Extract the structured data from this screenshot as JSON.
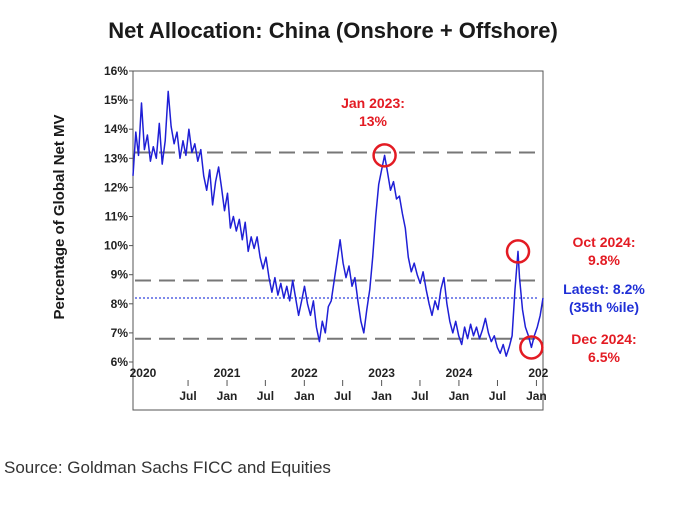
{
  "chart_data": {
    "type": "line",
    "title": "Net Allocation: China (Onshore + Offshore)",
    "ylabel": "Percentage of Global Net MV",
    "ylim": [
      6,
      16
    ],
    "yticks": [
      "6%",
      "7%",
      "8%",
      "9%",
      "10%",
      "11%",
      "12%",
      "13%",
      "14%",
      "15%",
      "16%"
    ],
    "ytick_values": [
      6,
      7,
      8,
      9,
      10,
      11,
      12,
      13,
      14,
      15,
      16
    ],
    "xlim": [
      "2019-10-15",
      "2025-02-01"
    ],
    "year_labels": [
      {
        "label": "2020",
        "x": "2019-12-01"
      },
      {
        "label": "2021",
        "x": "2021-01-01"
      },
      {
        "label": "2022",
        "x": "2022-01-01"
      },
      {
        "label": "2023",
        "x": "2023-01-01"
      },
      {
        "label": "2024",
        "x": "2024-01-01"
      },
      {
        "label": "202",
        "x": "2025-01-10"
      }
    ],
    "month_ticks": [
      {
        "label": "Jul",
        "x": "2020-07-01"
      },
      {
        "label": "Jan",
        "x": "2021-01-01"
      },
      {
        "label": "Jul",
        "x": "2021-07-01"
      },
      {
        "label": "Jan",
        "x": "2022-01-01"
      },
      {
        "label": "Jul",
        "x": "2022-07-01"
      },
      {
        "label": "Jan",
        "x": "2023-01-01"
      },
      {
        "label": "Jul",
        "x": "2023-07-01"
      },
      {
        "label": "Jan",
        "x": "2024-01-01"
      },
      {
        "label": "Jul",
        "x": "2024-07-01"
      },
      {
        "label": "Jan",
        "x": "2025-01-01"
      }
    ],
    "reference_lines": [
      {
        "y": 13.2,
        "style": "dashed",
        "color": "#777777"
      },
      {
        "y": 8.8,
        "style": "dashed",
        "color": "#777777"
      },
      {
        "y": 6.8,
        "style": "dashed",
        "color": "#777777"
      },
      {
        "y": 8.2,
        "style": "dotted",
        "color": "#3344dd"
      }
    ],
    "series": [
      {
        "color": "#1f1fd6",
        "points": [
          [
            "2019-10-15",
            12.4
          ],
          [
            "2019-10-28",
            13.9
          ],
          [
            "2019-11-10",
            13.1
          ],
          [
            "2019-11-24",
            14.9
          ],
          [
            "2019-12-08",
            13.3
          ],
          [
            "2019-12-22",
            13.8
          ],
          [
            "2020-01-05",
            12.9
          ],
          [
            "2020-01-19",
            13.4
          ],
          [
            "2020-02-02",
            13.0
          ],
          [
            "2020-02-16",
            14.2
          ],
          [
            "2020-03-01",
            12.8
          ],
          [
            "2020-03-15",
            13.6
          ],
          [
            "2020-03-29",
            15.3
          ],
          [
            "2020-04-12",
            14.1
          ],
          [
            "2020-04-26",
            13.5
          ],
          [
            "2020-05-10",
            13.9
          ],
          [
            "2020-05-24",
            13.0
          ],
          [
            "2020-06-07",
            13.6
          ],
          [
            "2020-06-21",
            13.1
          ],
          [
            "2020-07-05",
            14.0
          ],
          [
            "2020-07-19",
            13.2
          ],
          [
            "2020-08-02",
            13.5
          ],
          [
            "2020-08-16",
            12.9
          ],
          [
            "2020-08-30",
            13.3
          ],
          [
            "2020-09-13",
            12.4
          ],
          [
            "2020-09-27",
            11.9
          ],
          [
            "2020-10-11",
            12.6
          ],
          [
            "2020-10-25",
            11.4
          ],
          [
            "2020-11-08",
            12.2
          ],
          [
            "2020-11-22",
            12.7
          ],
          [
            "2020-12-06",
            12.0
          ],
          [
            "2020-12-20",
            11.2
          ],
          [
            "2021-01-03",
            11.8
          ],
          [
            "2021-01-17",
            10.6
          ],
          [
            "2021-01-31",
            11.0
          ],
          [
            "2021-02-14",
            10.5
          ],
          [
            "2021-02-28",
            10.9
          ],
          [
            "2021-03-14",
            10.2
          ],
          [
            "2021-03-28",
            10.8
          ],
          [
            "2021-04-11",
            9.8
          ],
          [
            "2021-04-25",
            10.3
          ],
          [
            "2021-05-09",
            9.9
          ],
          [
            "2021-05-23",
            10.3
          ],
          [
            "2021-06-06",
            9.6
          ],
          [
            "2021-06-20",
            9.2
          ],
          [
            "2021-07-04",
            9.6
          ],
          [
            "2021-07-18",
            8.9
          ],
          [
            "2021-08-01",
            8.4
          ],
          [
            "2021-08-15",
            8.9
          ],
          [
            "2021-08-29",
            8.3
          ],
          [
            "2021-09-12",
            8.7
          ],
          [
            "2021-09-26",
            8.2
          ],
          [
            "2021-10-10",
            8.6
          ],
          [
            "2021-10-24",
            8.1
          ],
          [
            "2021-11-07",
            8.8
          ],
          [
            "2021-11-21",
            8.2
          ],
          [
            "2021-12-05",
            7.6
          ],
          [
            "2021-12-19",
            8.1
          ],
          [
            "2022-01-02",
            8.6
          ],
          [
            "2022-01-16",
            8.0
          ],
          [
            "2022-01-30",
            7.6
          ],
          [
            "2022-02-13",
            8.1
          ],
          [
            "2022-02-27",
            7.2
          ],
          [
            "2022-03-13",
            6.7
          ],
          [
            "2022-03-27",
            7.4
          ],
          [
            "2022-04-10",
            7.0
          ],
          [
            "2022-04-24",
            7.9
          ],
          [
            "2022-05-08",
            8.1
          ],
          [
            "2022-05-22",
            8.8
          ],
          [
            "2022-06-05",
            9.5
          ],
          [
            "2022-06-19",
            10.2
          ],
          [
            "2022-07-03",
            9.4
          ],
          [
            "2022-07-17",
            8.9
          ],
          [
            "2022-07-31",
            9.3
          ],
          [
            "2022-08-14",
            8.6
          ],
          [
            "2022-08-28",
            8.9
          ],
          [
            "2022-09-11",
            8.1
          ],
          [
            "2022-09-25",
            7.4
          ],
          [
            "2022-10-09",
            7.0
          ],
          [
            "2022-10-23",
            7.8
          ],
          [
            "2022-11-06",
            8.5
          ],
          [
            "2022-11-20",
            9.6
          ],
          [
            "2022-12-04",
            11.0
          ],
          [
            "2022-12-18",
            12.1
          ],
          [
            "2023-01-01",
            12.6
          ],
          [
            "2023-01-15",
            13.1
          ],
          [
            "2023-01-29",
            12.5
          ],
          [
            "2023-02-12",
            11.9
          ],
          [
            "2023-02-26",
            12.2
          ],
          [
            "2023-03-12",
            11.6
          ],
          [
            "2023-03-26",
            11.7
          ],
          [
            "2023-04-09",
            11.1
          ],
          [
            "2023-04-23",
            10.6
          ],
          [
            "2023-05-07",
            9.6
          ],
          [
            "2023-05-21",
            9.1
          ],
          [
            "2023-06-04",
            9.4
          ],
          [
            "2023-06-18",
            9.0
          ],
          [
            "2023-07-02",
            8.7
          ],
          [
            "2023-07-16",
            9.1
          ],
          [
            "2023-07-30",
            8.5
          ],
          [
            "2023-08-13",
            8.0
          ],
          [
            "2023-08-27",
            7.6
          ],
          [
            "2023-09-10",
            8.1
          ],
          [
            "2023-09-24",
            7.8
          ],
          [
            "2023-10-08",
            8.5
          ],
          [
            "2023-10-22",
            8.9
          ],
          [
            "2023-11-05",
            8.0
          ],
          [
            "2023-11-19",
            7.4
          ],
          [
            "2023-12-03",
            7.0
          ],
          [
            "2023-12-17",
            7.4
          ],
          [
            "2023-12-31",
            6.9
          ],
          [
            "2024-01-14",
            6.6
          ],
          [
            "2024-01-28",
            7.2
          ],
          [
            "2024-02-11",
            6.8
          ],
          [
            "2024-02-25",
            7.3
          ],
          [
            "2024-03-10",
            6.9
          ],
          [
            "2024-03-24",
            7.2
          ],
          [
            "2024-04-07",
            6.8
          ],
          [
            "2024-04-21",
            7.1
          ],
          [
            "2024-05-05",
            7.5
          ],
          [
            "2024-05-19",
            7.0
          ],
          [
            "2024-06-02",
            6.7
          ],
          [
            "2024-06-16",
            6.9
          ],
          [
            "2024-06-30",
            6.5
          ],
          [
            "2024-07-14",
            6.3
          ],
          [
            "2024-07-28",
            6.6
          ],
          [
            "2024-08-11",
            6.2
          ],
          [
            "2024-08-25",
            6.5
          ],
          [
            "2024-09-08",
            6.9
          ],
          [
            "2024-09-22",
            8.5
          ],
          [
            "2024-10-06",
            9.8
          ],
          [
            "2024-10-13",
            8.9
          ],
          [
            "2024-10-27",
            7.8
          ],
          [
            "2024-11-10",
            7.2
          ],
          [
            "2024-11-24",
            6.9
          ],
          [
            "2024-12-08",
            6.5
          ],
          [
            "2024-12-22",
            6.9
          ],
          [
            "2025-01-05",
            7.2
          ],
          [
            "2025-01-19",
            7.6
          ],
          [
            "2025-02-01",
            8.2
          ]
        ]
      }
    ],
    "highlights": [
      {
        "x": "2023-01-15",
        "y": 13.1,
        "color": "#e31b23"
      },
      {
        "x": "2024-10-06",
        "y": 9.8,
        "color": "#e31b23"
      },
      {
        "x": "2024-12-08",
        "y": 6.5,
        "color": "#e31b23"
      }
    ],
    "annotations": [
      {
        "lines": [
          "Jan 2023:",
          "13%"
        ],
        "color": "#e31b23"
      },
      {
        "lines": [
          "Oct 2024:",
          "9.8%"
        ],
        "color": "#e31b23"
      },
      {
        "lines": [
          "Latest: 8.2%",
          "(35th %ile)"
        ],
        "color": "#1f2fd6"
      },
      {
        "lines": [
          "Dec 2024:",
          "6.5%"
        ],
        "color": "#e31b23"
      }
    ]
  },
  "source": "Source: Goldman Sachs FICC and Equities"
}
